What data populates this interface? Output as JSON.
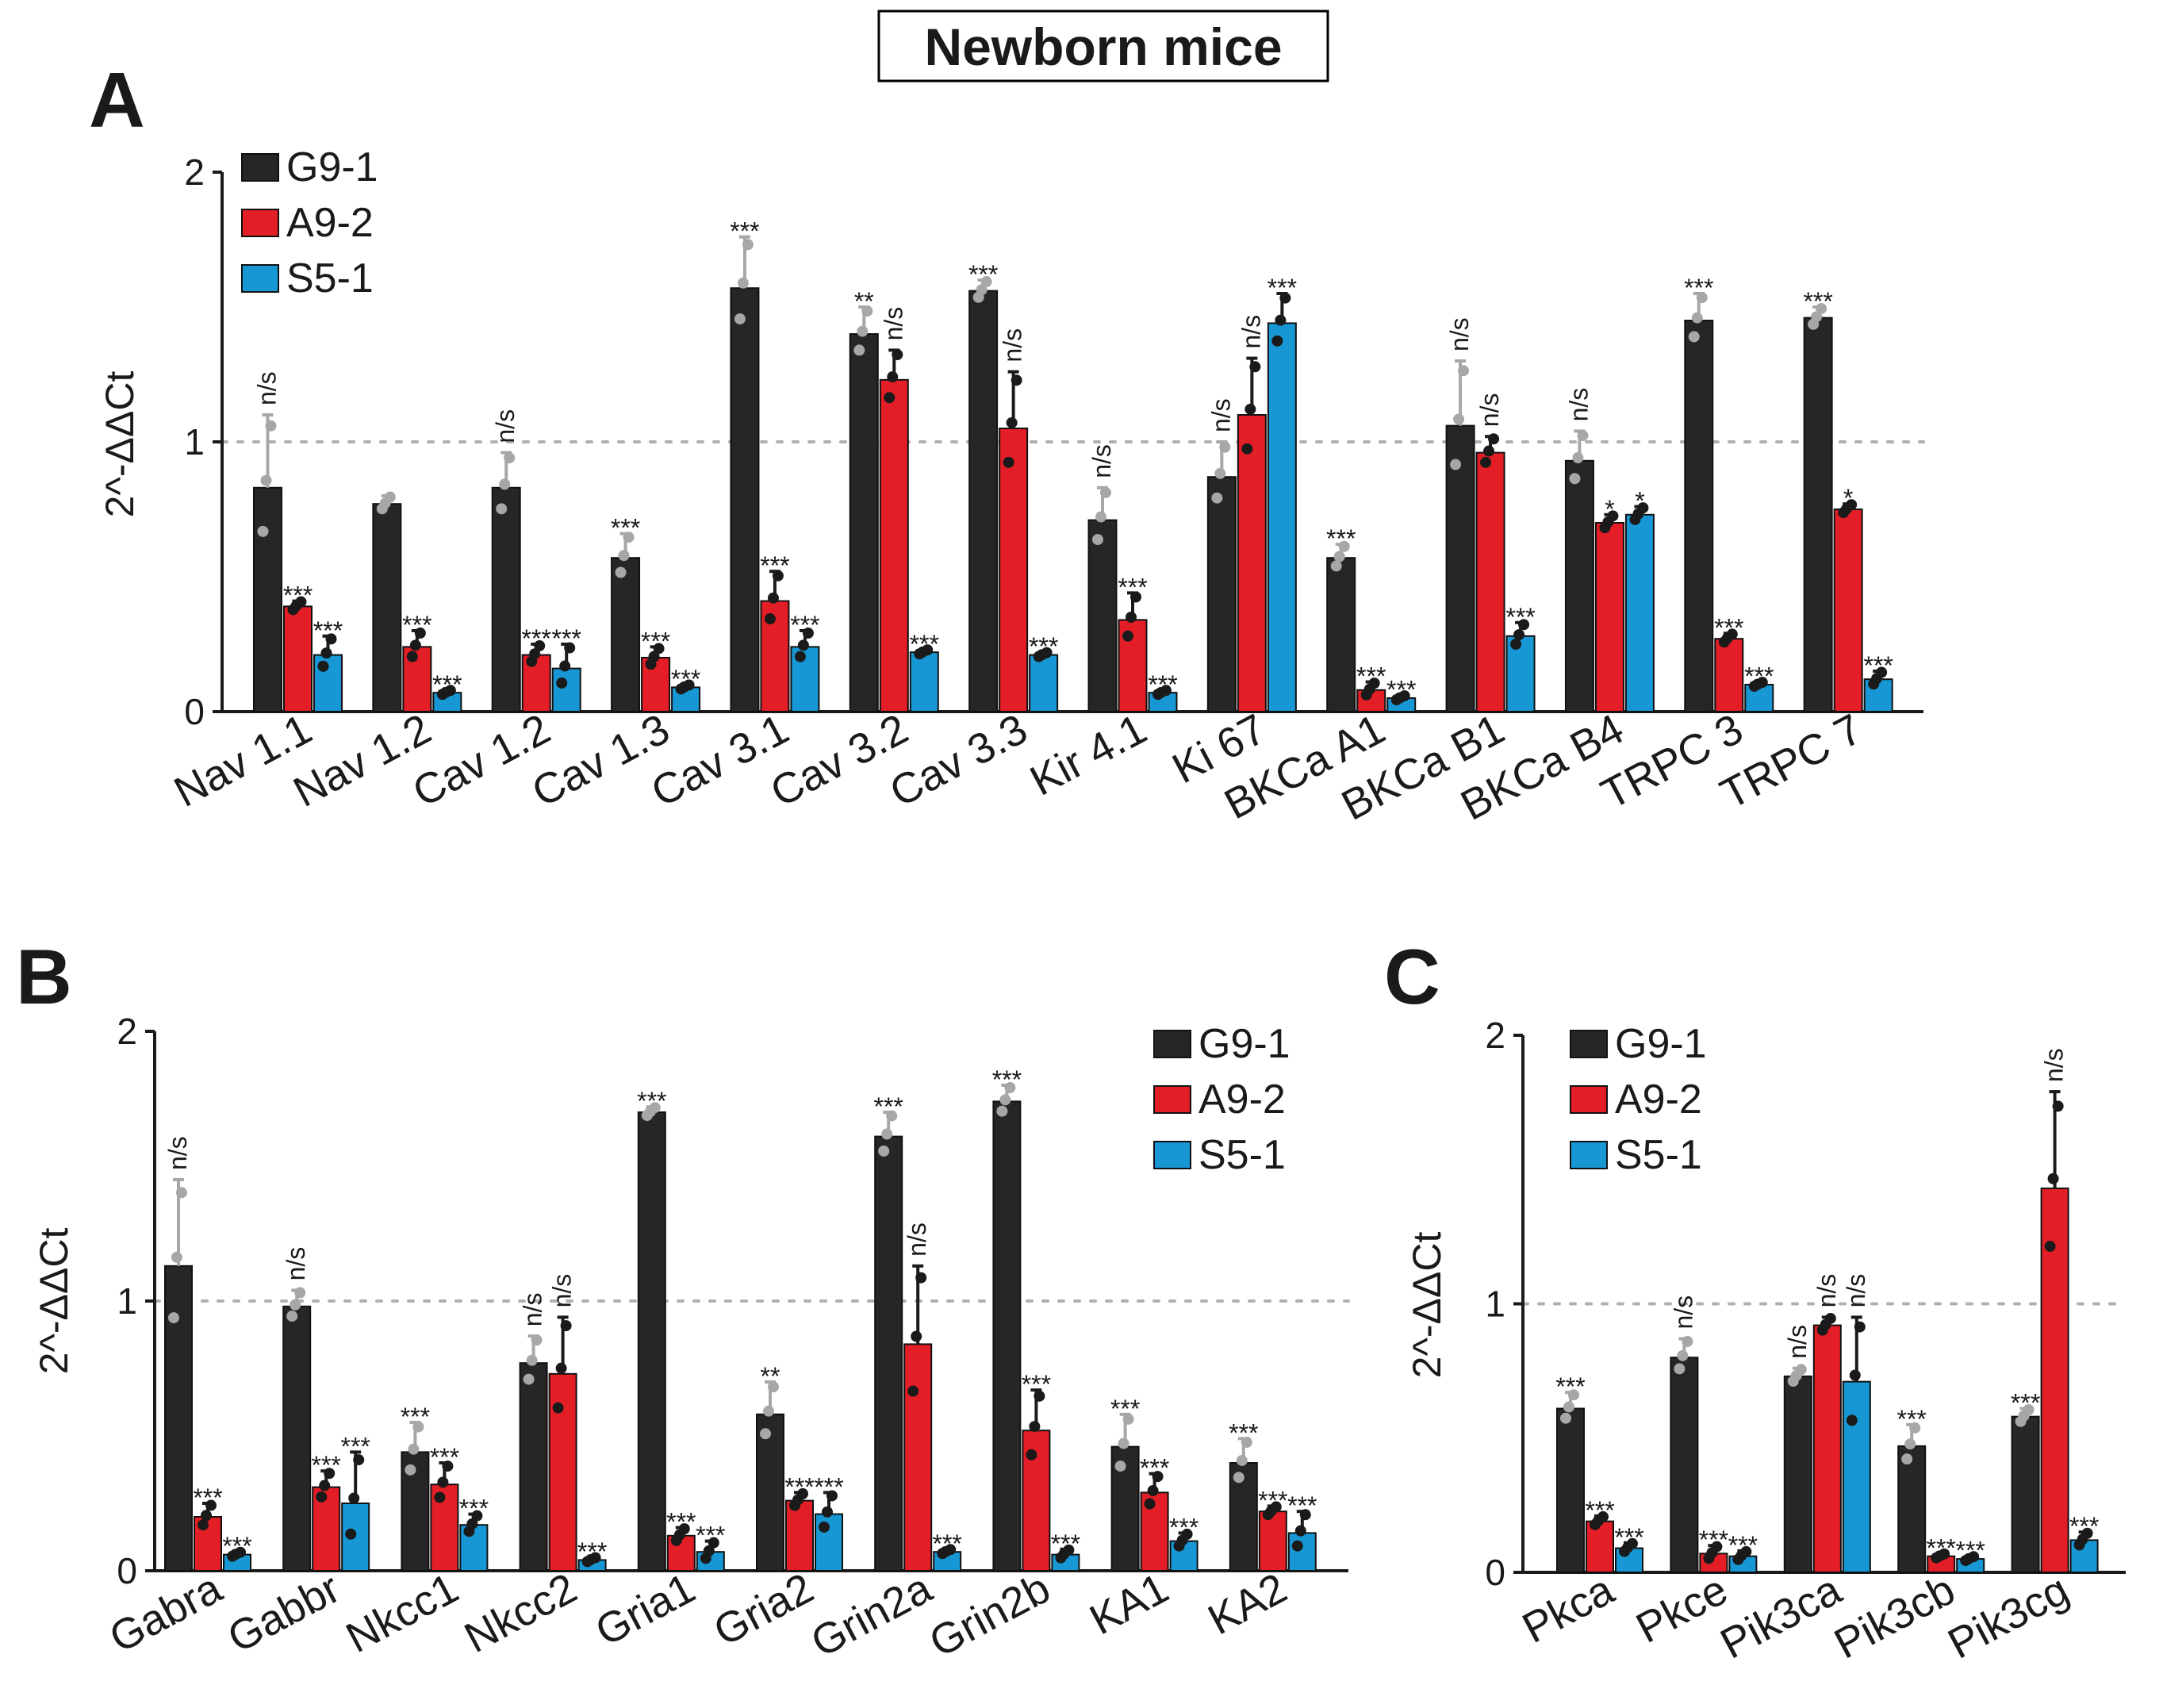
{
  "figure_title": "Newborn mice",
  "colors": {
    "G9-1": "#262626",
    "A9-2": "#e41e26",
    "S5-1": "#1798d5",
    "ref": "#b0b0b0",
    "dots_light": "#a7a7a7",
    "dots_dark": "#1a1a1a"
  },
  "chart_data": [
    {
      "panel": "A",
      "type": "bar",
      "ylabel": "2^-ΔΔCt",
      "ylim": [
        0,
        2
      ],
      "yticks": [
        "0",
        "1",
        "2"
      ],
      "reference_line": 1,
      "legend": [
        "G9-1",
        "A9-2",
        "S5-1"
      ],
      "legend_position": "top-left",
      "categories": [
        "Nav 1.1",
        "Nav 1.2",
        "Cav 1.2",
        "Cav 1.3",
        "Cav 3.1",
        "Cav 3.2",
        "Cav 3.3",
        "Kir 4.1",
        "Ki 67",
        "BKCa A1",
        "BKCa B1",
        "BKCa B4",
        "TRPC 3",
        "TRPC 7"
      ],
      "series": [
        {
          "name": "G9-1",
          "values": [
            0.83,
            0.77,
            0.83,
            0.57,
            1.57,
            1.4,
            1.56,
            0.71,
            0.87,
            0.57,
            1.06,
            0.93,
            1.45,
            1.46
          ],
          "errors": [
            0.27,
            0.03,
            0.13,
            0.09,
            0.19,
            0.1,
            0.04,
            0.12,
            0.13,
            0.05,
            0.24,
            0.11,
            0.1,
            0.04
          ],
          "significance": [
            "n/s",
            "",
            "n/s",
            "***",
            "***",
            "**",
            "***",
            "n/s",
            "n/s",
            "***",
            "n/s",
            "n/s",
            "***",
            "***"
          ]
        },
        {
          "name": "A9-2",
          "values": [
            0.39,
            0.24,
            0.21,
            0.2,
            0.41,
            1.23,
            1.05,
            0.34,
            1.1,
            0.08,
            0.96,
            0.7,
            0.27,
            0.75
          ],
          "errors": [
            0.02,
            0.06,
            0.04,
            0.04,
            0.11,
            0.11,
            0.21,
            0.1,
            0.21,
            0.03,
            0.06,
            0.03,
            0.02,
            0.02
          ],
          "significance": [
            "***",
            "***",
            "***",
            "***",
            "***",
            "n/s",
            "n/s",
            "***",
            "n/s",
            "***",
            "n/s",
            "*",
            "***",
            "*"
          ]
        },
        {
          "name": "S5-1",
          "values": [
            0.21,
            0.07,
            0.16,
            0.09,
            0.24,
            0.22,
            0.21,
            0.07,
            1.44,
            0.05,
            0.28,
            0.73,
            0.1,
            0.12
          ],
          "errors": [
            0.07,
            0.01,
            0.09,
            0.01,
            0.06,
            0.01,
            0.01,
            0.01,
            0.11,
            0.01,
            0.05,
            0.03,
            0.01,
            0.03
          ],
          "significance": [
            "***",
            "***",
            "***",
            "***",
            "***",
            "***",
            "***",
            "***",
            "***",
            "***",
            "***",
            "*",
            "***",
            "***"
          ]
        }
      ]
    },
    {
      "panel": "B",
      "type": "bar",
      "ylabel": "2^-ΔΔCt",
      "ylim": [
        0,
        2
      ],
      "yticks": [
        "0",
        "1",
        "2"
      ],
      "reference_line": 1,
      "legend": [
        "G9-1",
        "A9-2",
        "S5-1"
      ],
      "legend_position": "top-right",
      "categories": [
        "Gabra",
        "Gabbr",
        "Nkcc1",
        "Nkcc2",
        "Gria1",
        "Gria2",
        "Grin2a",
        "Grin2b",
        "KA1",
        "KA2"
      ],
      "series": [
        {
          "name": "G9-1",
          "values": [
            1.13,
            0.98,
            0.44,
            0.77,
            1.7,
            0.58,
            1.61,
            1.74,
            0.46,
            0.4
          ],
          "errors": [
            0.32,
            0.06,
            0.11,
            0.1,
            0.02,
            0.12,
            0.09,
            0.06,
            0.12,
            0.09
          ],
          "significance": [
            "n/s",
            "n/s",
            "***",
            "n/s",
            "***",
            "**",
            "***",
            "***",
            "***",
            "***"
          ]
        },
        {
          "name": "A9-2",
          "values": [
            0.2,
            0.31,
            0.32,
            0.73,
            0.13,
            0.26,
            0.84,
            0.52,
            0.29,
            0.22
          ],
          "errors": [
            0.05,
            0.06,
            0.08,
            0.21,
            0.03,
            0.03,
            0.29,
            0.15,
            0.07,
            0.02
          ],
          "significance": [
            "***",
            "***",
            "***",
            "n/s",
            "***",
            "***",
            "n/s",
            "***",
            "***",
            "***"
          ]
        },
        {
          "name": "S5-1",
          "values": [
            0.06,
            0.25,
            0.17,
            0.04,
            0.07,
            0.21,
            0.07,
            0.06,
            0.11,
            0.14
          ],
          "errors": [
            0.01,
            0.19,
            0.04,
            0.01,
            0.04,
            0.08,
            0.01,
            0.02,
            0.03,
            0.08
          ],
          "significance": [
            "***",
            "***",
            "***",
            "***",
            "***",
            "***",
            "***",
            "***",
            "***",
            "***"
          ]
        }
      ]
    },
    {
      "panel": "C",
      "type": "bar",
      "ylabel": "2^-ΔΔCt",
      "ylim": [
        0,
        2
      ],
      "yticks": [
        "0",
        "1",
        "2"
      ],
      "reference_line": 1,
      "legend": [
        "G9-1",
        "A9-2",
        "S5-1"
      ],
      "legend_position": "top-left",
      "categories": [
        "Pkca",
        "Pkce",
        "Pik3ca",
        "Pik3cb",
        "Pik3cg"
      ],
      "series": [
        {
          "name": "G9-1",
          "values": [
            0.61,
            0.8,
            0.73,
            0.47,
            0.58
          ],
          "errors": [
            0.06,
            0.07,
            0.03,
            0.08,
            0.03
          ],
          "significance": [
            "***",
            "n/s",
            "n/s",
            "***",
            "***"
          ]
        },
        {
          "name": "A9-2",
          "values": [
            0.19,
            0.07,
            0.92,
            0.06,
            1.43
          ],
          "errors": [
            0.02,
            0.03,
            0.03,
            0.01,
            0.36
          ],
          "significance": [
            "***",
            "***",
            "n/s",
            "***",
            "n/s"
          ]
        },
        {
          "name": "S5-1",
          "values": [
            0.09,
            0.06,
            0.71,
            0.05,
            0.12
          ],
          "errors": [
            0.02,
            0.02,
            0.24,
            0.01,
            0.03
          ],
          "significance": [
            "***",
            "***",
            "n/s",
            "***",
            "***"
          ]
        }
      ]
    }
  ]
}
